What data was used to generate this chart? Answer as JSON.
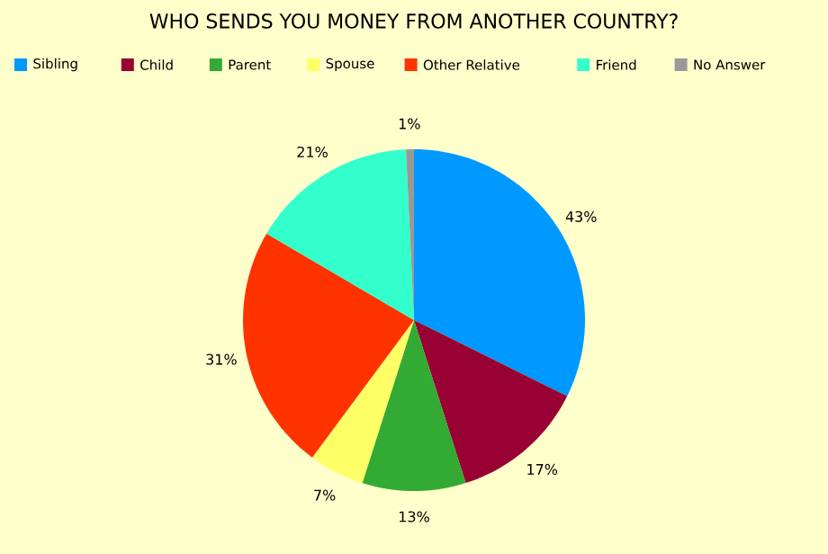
{
  "chart_data": {
    "type": "pie",
    "title": "WHO SENDS YOU MONEY FROM ANOTHER COUNTRY?",
    "categories": [
      "Sibling",
      "Child",
      "Parent",
      "Spouse",
      "Other Relative",
      "Friend",
      "No Answer"
    ],
    "values": [
      43,
      17,
      13,
      7,
      31,
      21,
      1
    ],
    "colors": [
      "#0099ff",
      "#990033",
      "#33aa33",
      "#ffff66",
      "#ff3300",
      "#33ffcc",
      "#999999"
    ],
    "value_labels": [
      "43%",
      "17%",
      "13%",
      "7%",
      "31%",
      "21%",
      "1%"
    ],
    "legend": "top"
  }
}
